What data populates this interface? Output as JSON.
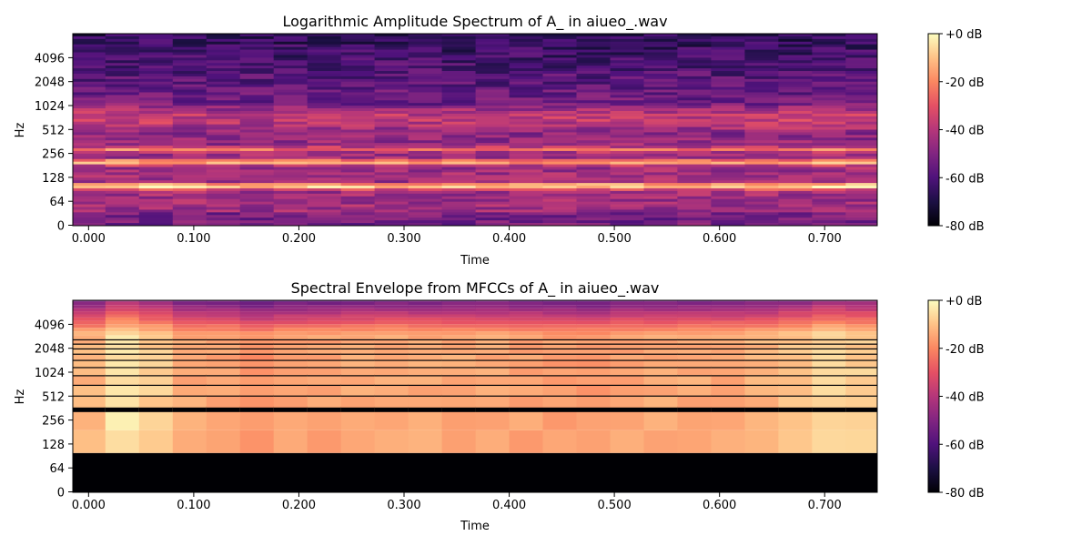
{
  "chart_data": [
    {
      "type": "heatmap",
      "title": "Logarithmic Amplitude Spectrum of A_ in aiueo_.wav",
      "xlabel": "Time",
      "ylabel": "Hz",
      "xlim": [
        -0.015,
        0.75
      ],
      "x_ticks": [
        "0.000",
        "0.100",
        "0.200",
        "0.300",
        "0.400",
        "0.500",
        "0.600",
        "0.700"
      ],
      "y_ticks": [
        "0",
        "64",
        "128",
        "256",
        "512",
        "1024",
        "2048",
        "4096"
      ],
      "y_scale": "symlog",
      "frame_times": [
        0.0,
        0.032,
        0.064,
        0.096,
        0.128,
        0.16,
        0.192,
        0.224,
        0.256,
        0.288,
        0.32,
        0.352,
        0.384,
        0.416,
        0.448,
        0.48,
        0.512,
        0.544,
        0.576,
        0.608,
        0.64,
        0.672,
        0.704,
        0.736
      ],
      "frame_energy_db": [
        -4,
        -2,
        -4,
        -6,
        -6,
        -7,
        -6,
        -6,
        -6,
        -6,
        -6,
        -6,
        -6,
        -6,
        -6,
        -6,
        -6,
        -6,
        -6,
        -6,
        -5,
        -4,
        -2,
        -4
      ],
      "bands": [
        {
          "hz": 100,
          "db": -2
        },
        {
          "hz": 200,
          "db": -10
        },
        {
          "hz": 290,
          "db": -18
        },
        {
          "hz": 700,
          "db": -32
        },
        {
          "hz": 1500,
          "db": -52
        },
        {
          "hz": 4000,
          "db": -62
        }
      ],
      "colorbar": {
        "label_ticks": [
          "+0 dB",
          "-20 dB",
          "-40 dB",
          "-60 dB",
          "-80 dB"
        ],
        "range_db": [
          -80,
          0
        ],
        "colormap": "magma"
      }
    },
    {
      "type": "heatmap",
      "title": "Spectral Envelope from MFCCs of A_ in aiueo_.wav",
      "xlabel": "Time",
      "ylabel": "Hz",
      "xlim": [
        -0.015,
        0.75
      ],
      "x_ticks": [
        "0.000",
        "0.100",
        "0.200",
        "0.300",
        "0.400",
        "0.500",
        "0.600",
        "0.700"
      ],
      "y_ticks": [
        "0",
        "64",
        "128",
        "256",
        "512",
        "1024",
        "2048",
        "4096"
      ],
      "y_scale": "symlog",
      "frame_times": [
        0.0,
        0.032,
        0.064,
        0.096,
        0.128,
        0.16,
        0.192,
        0.224,
        0.256,
        0.288,
        0.32,
        0.352,
        0.384,
        0.416,
        0.448,
        0.48,
        0.512,
        0.544,
        0.576,
        0.608,
        0.64,
        0.672,
        0.704,
        0.736
      ],
      "envelope_db": [
        -12,
        -4,
        -8,
        -14,
        -15,
        -18,
        -16,
        -15,
        -14,
        -14,
        -14,
        -14,
        -14,
        -15,
        -16,
        -17,
        -15,
        -14,
        -14,
        -14,
        -12,
        -10,
        -6,
        -8
      ],
      "empty_below_hz": 100,
      "colorbar": {
        "label_ticks": [
          "+0 dB",
          "-20 dB",
          "-40 dB",
          "-60 dB",
          "-80 dB"
        ],
        "range_db": [
          -80,
          0
        ],
        "colormap": "magma"
      }
    }
  ]
}
